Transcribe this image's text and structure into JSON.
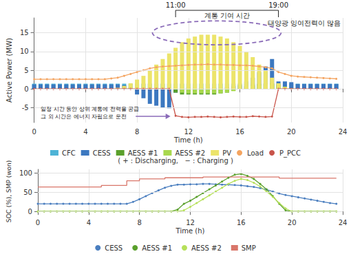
{
  "chart_data": [
    {
      "type": "bar",
      "stacked": true,
      "grid": true,
      "x_label": "Time (h)",
      "y_label": "Active Power (MW)",
      "x": [
        0,
        0.5,
        1,
        1.5,
        2,
        2.5,
        3,
        3.5,
        4,
        4.5,
        5,
        5.5,
        6,
        6.5,
        7,
        7.5,
        8,
        8.5,
        9,
        9.5,
        10,
        10.5,
        11,
        11.5,
        12,
        12.5,
        13,
        13.5,
        14,
        14.5,
        15,
        15.5,
        16,
        16.5,
        17,
        17.5,
        18,
        18.5,
        19,
        19.5,
        20,
        20.5,
        21,
        21.5,
        22,
        22.5,
        23,
        23.5
      ],
      "xlim": [
        0,
        24
      ],
      "xticks": [
        0,
        4,
        8,
        12,
        16,
        20,
        24
      ],
      "ylim": [
        -9,
        19
      ],
      "yticks": [
        -5,
        0,
        5,
        10,
        15
      ],
      "series": [
        {
          "name": "CFC",
          "type": "bar",
          "color": "#4db3d6",
          "values": [
            1.4,
            1.4,
            1.4,
            1.4,
            1.4,
            1.4,
            1.4,
            1.4,
            1.4,
            1.4,
            1.4,
            1.4,
            1.4,
            1.4,
            1.4,
            1.4,
            1.4,
            1.4,
            1.4,
            1.4,
            1.4,
            1.4,
            1.4,
            1.4,
            1.4,
            1.4,
            1.4,
            1.4,
            1.4,
            1.4,
            1.4,
            1.4,
            1.4,
            1.4,
            1.4,
            1.4,
            1.4,
            1.4,
            1.4,
            1.4,
            1.4,
            1.4,
            1.4,
            1.4,
            1.4,
            1.4,
            1.4,
            1.4
          ]
        },
        {
          "name": "CESS",
          "type": "bar",
          "color": "#3c78c0",
          "values": [
            1.2,
            1.2,
            1.2,
            1.2,
            1.2,
            1.2,
            1.2,
            1.2,
            1.2,
            1.2,
            1.2,
            1.2,
            1.2,
            1.2,
            1.0,
            0.3,
            -1.5,
            -2.5,
            -4,
            -4.5,
            -5,
            -5.2,
            -1,
            0,
            0.3,
            0,
            0.2,
            0,
            0.3,
            0,
            0.5,
            0.8,
            1,
            2,
            3,
            4.5,
            6,
            8,
            2,
            2,
            1.8,
            1.3,
            1.3,
            1.3,
            1.3,
            1.3,
            1.3,
            1.3
          ]
        },
        {
          "name": "AESS #1",
          "type": "bar",
          "color": "#5aa02c",
          "values": [
            0,
            0,
            0,
            0,
            0,
            0,
            0,
            0,
            0,
            0,
            0,
            0,
            0,
            0,
            0,
            0,
            0,
            0,
            0,
            0,
            0,
            0,
            -1,
            -1.5,
            -1.5,
            -1.5,
            -1.5,
            -1.5,
            -1.5,
            -1.2,
            -1,
            -0.5,
            0,
            0.8,
            1,
            1.2,
            1.5,
            1.5,
            1,
            0.5,
            0,
            0,
            0,
            0,
            0,
            0,
            0,
            0
          ]
        },
        {
          "name": "AESS #2",
          "type": "bar",
          "color": "#a8d84e",
          "values": [
            0,
            0,
            0,
            0,
            0,
            0,
            0,
            0,
            0,
            0,
            0,
            0,
            0,
            0,
            0,
            0,
            0,
            0,
            0,
            0,
            0,
            0,
            0,
            -1,
            -1.2,
            -1.2,
            -1.2,
            -1.2,
            -1.2,
            -1.2,
            -1,
            -0.6,
            0,
            0.6,
            0.8,
            1,
            1.2,
            1.2,
            1,
            0.6,
            0.2,
            0,
            0,
            0,
            0,
            0,
            0,
            0
          ]
        },
        {
          "name": "PV",
          "type": "bar",
          "color": "#ece46a",
          "values": [
            0,
            0,
            0,
            0,
            0,
            0,
            0,
            0,
            0,
            0,
            0,
            0,
            0,
            0.3,
            0.8,
            1.5,
            2.5,
            3.5,
            5,
            6.5,
            8,
            9.5,
            11,
            12.5,
            13.5,
            14,
            14.5,
            14.5,
            14.5,
            14,
            13.5,
            12.5,
            11.5,
            10,
            8.5,
            6.5,
            5,
            3,
            1.5,
            0.5,
            0,
            0,
            0,
            0,
            0,
            0,
            0,
            0
          ]
        },
        {
          "name": "Load",
          "type": "line",
          "marker": "circle",
          "color": "#f4a460",
          "values": [
            2.6,
            2.6,
            2.6,
            2.6,
            2.6,
            2.6,
            2.6,
            2.6,
            2.6,
            2.6,
            2.6,
            2.6,
            2.8,
            3,
            3.5,
            4,
            4.5,
            5,
            5.5,
            5.8,
            6,
            6.1,
            6.2,
            6.3,
            6.4,
            6.5,
            6.5,
            6.6,
            6.5,
            6.5,
            6.4,
            6.4,
            6.3,
            6.3,
            6.2,
            6,
            5.8,
            5.5,
            4.5,
            4,
            3.5,
            3.3,
            3.2,
            3.1,
            3,
            2.9,
            2.8,
            2.7
          ]
        },
        {
          "name": "P_PCC",
          "type": "line",
          "marker": "circle",
          "color": "#c8544a",
          "values": [
            0,
            0,
            0,
            0,
            0,
            0,
            0,
            0,
            0,
            0,
            0,
            0,
            0,
            0,
            0,
            0,
            0,
            0,
            0,
            0,
            0,
            0,
            -7.2,
            -7.5,
            -7.6,
            -7.5,
            -7.5,
            -7.4,
            -7.5,
            -7.6,
            -7.5,
            -7.4,
            -7.5,
            -7.5,
            -7.3,
            -7.4,
            -7.5,
            -7.4,
            0,
            0,
            0,
            0,
            0,
            0,
            0,
            0,
            0,
            0
          ]
        }
      ],
      "legend_note": "( + : Discharging,   − : Charging )",
      "bracket": {
        "label": "계통 기여 시간",
        "start": {
          "value": 11,
          "label": "11:00"
        },
        "end": {
          "value": 19,
          "label": "19:00"
        }
      },
      "annotations": [
        "태양광 잉여전력이 많음",
        "일정 시간 동안 상위 계통에 전력을 공급\n그 외 시간은 에너지 자립으로 운전"
      ]
    },
    {
      "type": "line",
      "grid": true,
      "x_label": "Time (h)",
      "y_label": "SOC (%), SMP (won)",
      "x": [
        0,
        0.5,
        1,
        1.5,
        2,
        2.5,
        3,
        3.5,
        4,
        4.5,
        5,
        5.5,
        6,
        6.5,
        7,
        7.5,
        8,
        8.5,
        9,
        9.5,
        10,
        10.5,
        11,
        11.5,
        12,
        12.5,
        13,
        13.5,
        14,
        14.5,
        15,
        15.5,
        16,
        16.5,
        17,
        17.5,
        18,
        18.5,
        19,
        19.5,
        20,
        20.5,
        21,
        21.5,
        22,
        22.5,
        23,
        23.5
      ],
      "xlim": [
        0,
        24
      ],
      "xticks": [
        0,
        4,
        8,
        12,
        16,
        20,
        24
      ],
      "ylim": [
        -5,
        110
      ],
      "yticks": [
        0,
        50,
        100
      ],
      "series": [
        {
          "name": "CESS",
          "marker": "circle",
          "color": "#4a7ebf",
          "values": [
            20,
            20,
            20,
            20,
            20,
            20,
            20,
            20,
            20,
            20,
            20,
            20,
            20,
            20,
            20,
            25,
            32,
            40,
            48,
            55,
            62,
            67,
            70,
            70,
            71,
            71,
            72,
            72,
            71,
            70,
            70,
            69,
            68,
            66,
            64,
            61,
            57,
            52,
            47,
            43,
            40,
            37,
            34,
            31,
            28,
            25,
            22,
            20
          ]
        },
        {
          "name": "AESS #1",
          "marker": "circle",
          "color": "#5aa02c",
          "values": [
            0,
            0,
            0,
            0,
            0,
            0,
            0,
            0,
            0,
            0,
            0,
            0,
            0,
            0,
            0,
            0,
            0,
            0,
            0,
            0,
            0,
            0,
            5,
            20,
            28,
            38,
            48,
            58,
            68,
            78,
            88,
            96,
            98,
            93,
            85,
            72,
            58,
            40,
            20,
            3,
            0,
            0,
            0,
            0,
            0,
            0,
            0,
            0
          ]
        },
        {
          "name": "AESS #2",
          "marker": "circle",
          "color": "#b6e05a",
          "values": [
            0,
            0,
            0,
            0,
            0,
            0,
            0,
            0,
            0,
            0,
            0,
            0,
            0,
            0,
            0,
            0,
            0,
            0,
            0,
            0,
            0,
            0,
            0,
            3,
            12,
            22,
            32,
            42,
            52,
            62,
            72,
            80,
            85,
            82,
            75,
            65,
            52,
            38,
            22,
            8,
            0,
            0,
            0,
            0,
            0,
            0,
            0,
            0
          ]
        },
        {
          "name": "SMP",
          "marker": "none",
          "line_style": "step",
          "color": "#d9766a",
          "values": [
            64,
            64,
            64,
            64,
            64,
            64,
            64,
            64,
            64,
            64,
            68,
            68,
            68,
            68,
            80,
            80,
            85,
            85,
            85,
            85,
            88,
            88,
            88,
            88,
            88,
            88,
            90,
            90,
            90,
            90,
            90,
            90,
            90,
            90,
            90,
            90,
            90,
            90,
            87,
            87,
            87,
            87,
            87,
            87,
            87,
            87,
            87,
            87
          ]
        }
      ]
    }
  ]
}
